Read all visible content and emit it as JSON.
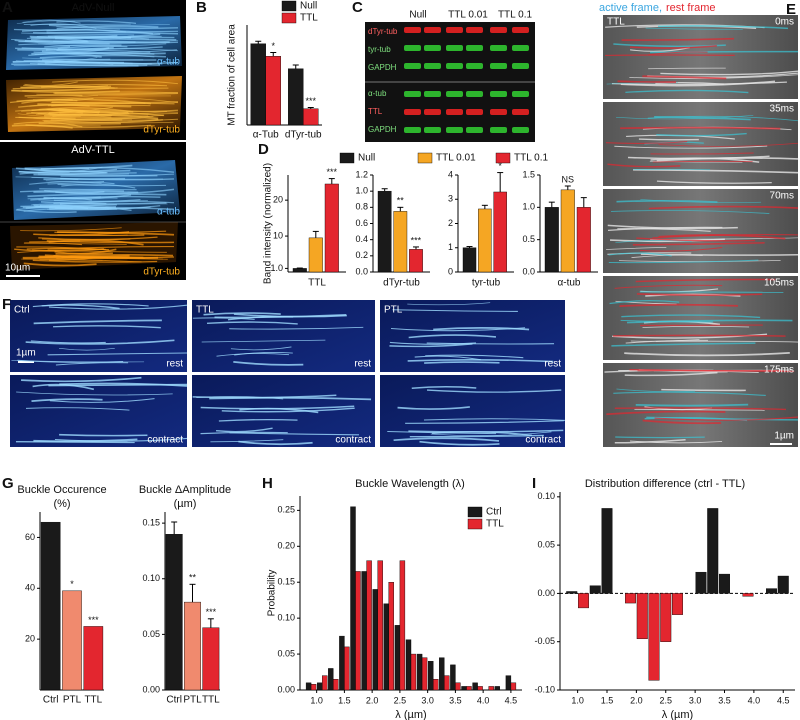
{
  "panel_letters": [
    "A",
    "B",
    "C",
    "D",
    "E",
    "F",
    "G",
    "H",
    "I"
  ],
  "panel_a": {
    "null_title": "AdV-Null",
    "ttl_title": "AdV-TTL",
    "labels": [
      "α-tub",
      "dTyr-tub",
      "α-tub",
      "dTyr-tub"
    ],
    "scale_bar": "10µm"
  },
  "panel_c": {
    "columns": [
      "Null",
      "TTL 0.01",
      "TTL 0.1"
    ],
    "rows": [
      "dTyr-tub",
      "tyr-tub",
      "GAPDH",
      "α-tub",
      "TTL",
      "GAPDH"
    ]
  },
  "panel_e": {
    "legend": [
      "active frame,",
      "rest frame"
    ],
    "label": "TTL",
    "times": [
      "0ms",
      "35ms",
      "70ms",
      "105ms",
      "175ms"
    ],
    "scale_bar": "1µm"
  },
  "panel_f": {
    "columns": [
      "Ctrl",
      "TTL",
      "PTL"
    ],
    "rows": [
      "rest",
      "contract"
    ],
    "scale_bar": "1µm"
  },
  "chart_data": [
    {
      "type": "bar",
      "ylabel": "MT fraction of cell area",
      "categories": [
        "α-Tub",
        "dTyr-tub"
      ],
      "series": [
        {
          "name": "Null",
          "color": "#1a1a1a",
          "values": [
            0.65,
            0.45
          ],
          "errors": [
            0.02,
            0.03
          ],
          "significance": [
            null,
            null
          ]
        },
        {
          "name": "TTL",
          "color": "#e3262f",
          "values": [
            0.55,
            0.13
          ],
          "errors": [
            0.03,
            0.01
          ],
          "significance": [
            "*",
            "***"
          ]
        }
      ],
      "ylim": [
        0,
        0.8
      ],
      "legend": "upper right"
    },
    {
      "type": "bar",
      "ylabel": "Band intensity (normalized)",
      "categories": [
        "TTL",
        "dTyr-tub",
        "tyr-tub",
        "α-tub"
      ],
      "series": [
        {
          "name": "Null",
          "color": "#1a1a1a",
          "values": [
            1.0,
            1.0,
            1.0,
            1.0
          ],
          "errors": [
            0.1,
            0.03,
            0.05,
            0.08
          ],
          "significance": [
            null,
            null,
            null,
            null
          ]
        },
        {
          "name": "TTL 0.01",
          "color": "#f5a623",
          "values": [
            9.5,
            0.75,
            2.6,
            1.27
          ],
          "errors": [
            1.8,
            0.05,
            0.15,
            0.06
          ],
          "significance": [
            null,
            "**",
            null,
            "NS"
          ]
        },
        {
          "name": "TTL 0.1",
          "color": "#e3262f",
          "values": [
            24.5,
            0.28,
            3.3,
            1.0
          ],
          "errors": [
            1.5,
            0.03,
            0.8,
            0.15
          ],
          "significance": [
            "***",
            "***",
            "*",
            null
          ]
        }
      ],
      "axes": [
        {
          "ylim": [
            0,
            27
          ],
          "yticks": [
            {
              "value": 1,
              "label": "1.0"
            },
            10,
            20
          ]
        },
        {
          "ylim": [
            0,
            1.2
          ],
          "yticks": [
            {
              "value": 0,
              "label": "0.0"
            },
            0.2,
            0.4,
            0.6,
            0.8,
            {
              "value": 1,
              "label": "1.0"
            },
            1.2
          ]
        },
        {
          "ylim": [
            0,
            4
          ],
          "yticks": [
            0,
            1,
            2,
            3,
            4
          ]
        },
        {
          "ylim": [
            0,
            1.5
          ],
          "yticks": [
            {
              "value": 0,
              "label": "0.0"
            },
            0.5,
            {
              "value": 1,
              "label": "1.0"
            },
            1.5
          ]
        }
      ],
      "legend": "top"
    },
    {
      "type": "bar",
      "title": [
        "Buckle Occurence",
        "(%)"
      ],
      "categories": [
        "Ctrl",
        "PTL",
        "TTL"
      ],
      "values": [
        66,
        39,
        25
      ],
      "colors": [
        "#1a1a1a",
        "#f08a6e",
        "#e3262f"
      ],
      "significance": [
        null,
        "*",
        "***"
      ],
      "ylim": [
        0,
        70
      ],
      "yticks": [
        20,
        40,
        60
      ]
    },
    {
      "type": "bar",
      "title": [
        "Buckle ΔAmplitude",
        "(µm)"
      ],
      "categories": [
        "Ctrl",
        "PTL",
        "TTL"
      ],
      "values": [
        0.14,
        0.079,
        0.056
      ],
      "errors": [
        0.011,
        0.016,
        0.008
      ],
      "colors": [
        "#1a1a1a",
        "#f08a6e",
        "#e3262f"
      ],
      "significance": [
        null,
        "**",
        "***"
      ],
      "ylim": [
        0,
        0.16
      ],
      "yticks": [
        {
          "value": 0,
          "label": "0.00"
        },
        0.05,
        {
          "value": 0.1,
          "label": "0.10"
        },
        0.15
      ]
    },
    {
      "type": "bar",
      "title": "Buckle Wavelength (λ)",
      "xlabel": "λ (µm)",
      "ylabel": "Probability",
      "x": [
        0.9,
        1.1,
        1.3,
        1.5,
        1.7,
        1.9,
        2.1,
        2.3,
        2.5,
        2.7,
        2.9,
        3.1,
        3.3,
        3.5,
        3.7,
        3.9,
        4.1,
        4.3,
        4.5
      ],
      "series": [
        {
          "name": "Ctrl",
          "color": "#1a1a1a",
          "values": [
            0.01,
            0.01,
            0.03,
            0.075,
            0.255,
            0.165,
            0.14,
            0.12,
            0.09,
            0.07,
            0.05,
            0.04,
            0.045,
            0.035,
            0.005,
            0.01,
            0,
            0.005,
            0.02
          ]
        },
        {
          "name": "TTL",
          "color": "#e3262f",
          "values": [
            0.008,
            0.02,
            0.015,
            0.06,
            0.165,
            0.18,
            0.18,
            0.15,
            0.18,
            0.05,
            0.045,
            0.015,
            0.02,
            0.01,
            0.005,
            0.005,
            0.005,
            0,
            0.01
          ]
        }
      ],
      "xlim": [
        0.7,
        4.7
      ],
      "xticks": [
        {
          "value": 1,
          "label": "1.0"
        },
        1.5,
        {
          "value": 2,
          "label": "2.0"
        },
        2.5,
        {
          "value": 3,
          "label": "3.0"
        },
        3.5,
        {
          "value": 4,
          "label": "4.0"
        },
        4.5
      ],
      "ylim": [
        0,
        0.27
      ],
      "yticks": [
        {
          "value": 0,
          "label": "0.00"
        },
        0.05,
        {
          "value": 0.1,
          "label": "0.10"
        },
        0.15,
        {
          "value": 0.2,
          "label": "0.20"
        },
        0.25
      ],
      "legend": "upper right"
    },
    {
      "type": "bar",
      "title": "Distribution difference (ctrl - TTL)",
      "xlabel": "λ (µm)",
      "x": [
        0.9,
        1.1,
        1.3,
        1.5,
        1.7,
        1.9,
        2.1,
        2.3,
        2.5,
        2.7,
        2.9,
        3.1,
        3.3,
        3.5,
        3.7,
        3.9,
        4.1,
        4.3,
        4.5
      ],
      "values": [
        0.002,
        -0.015,
        0.008,
        0.088,
        0,
        -0.01,
        -0.047,
        -0.09,
        -0.05,
        -0.022,
        0,
        0.022,
        0.088,
        0.02,
        0,
        -0.003,
        0,
        0.005,
        0.018
      ],
      "color_positive": "#1a1a1a",
      "color_negative": "#e3262f",
      "xlim": [
        0.7,
        4.7
      ],
      "xticks": [
        {
          "value": 1,
          "label": "1.0"
        },
        1.5,
        {
          "value": 2,
          "label": "2.0"
        },
        2.5,
        {
          "value": 3,
          "label": "3.0"
        },
        3.5,
        {
          "value": 4,
          "label": "4.0"
        },
        4.5
      ],
      "ylim": [
        -0.1,
        0.105
      ],
      "yticks": [
        {
          "value": -0.1,
          "label": "-0.10"
        },
        -0.05,
        {
          "value": 0,
          "label": "0.00"
        },
        0.05,
        {
          "value": 0.1,
          "label": "0.10"
        }
      ]
    }
  ]
}
